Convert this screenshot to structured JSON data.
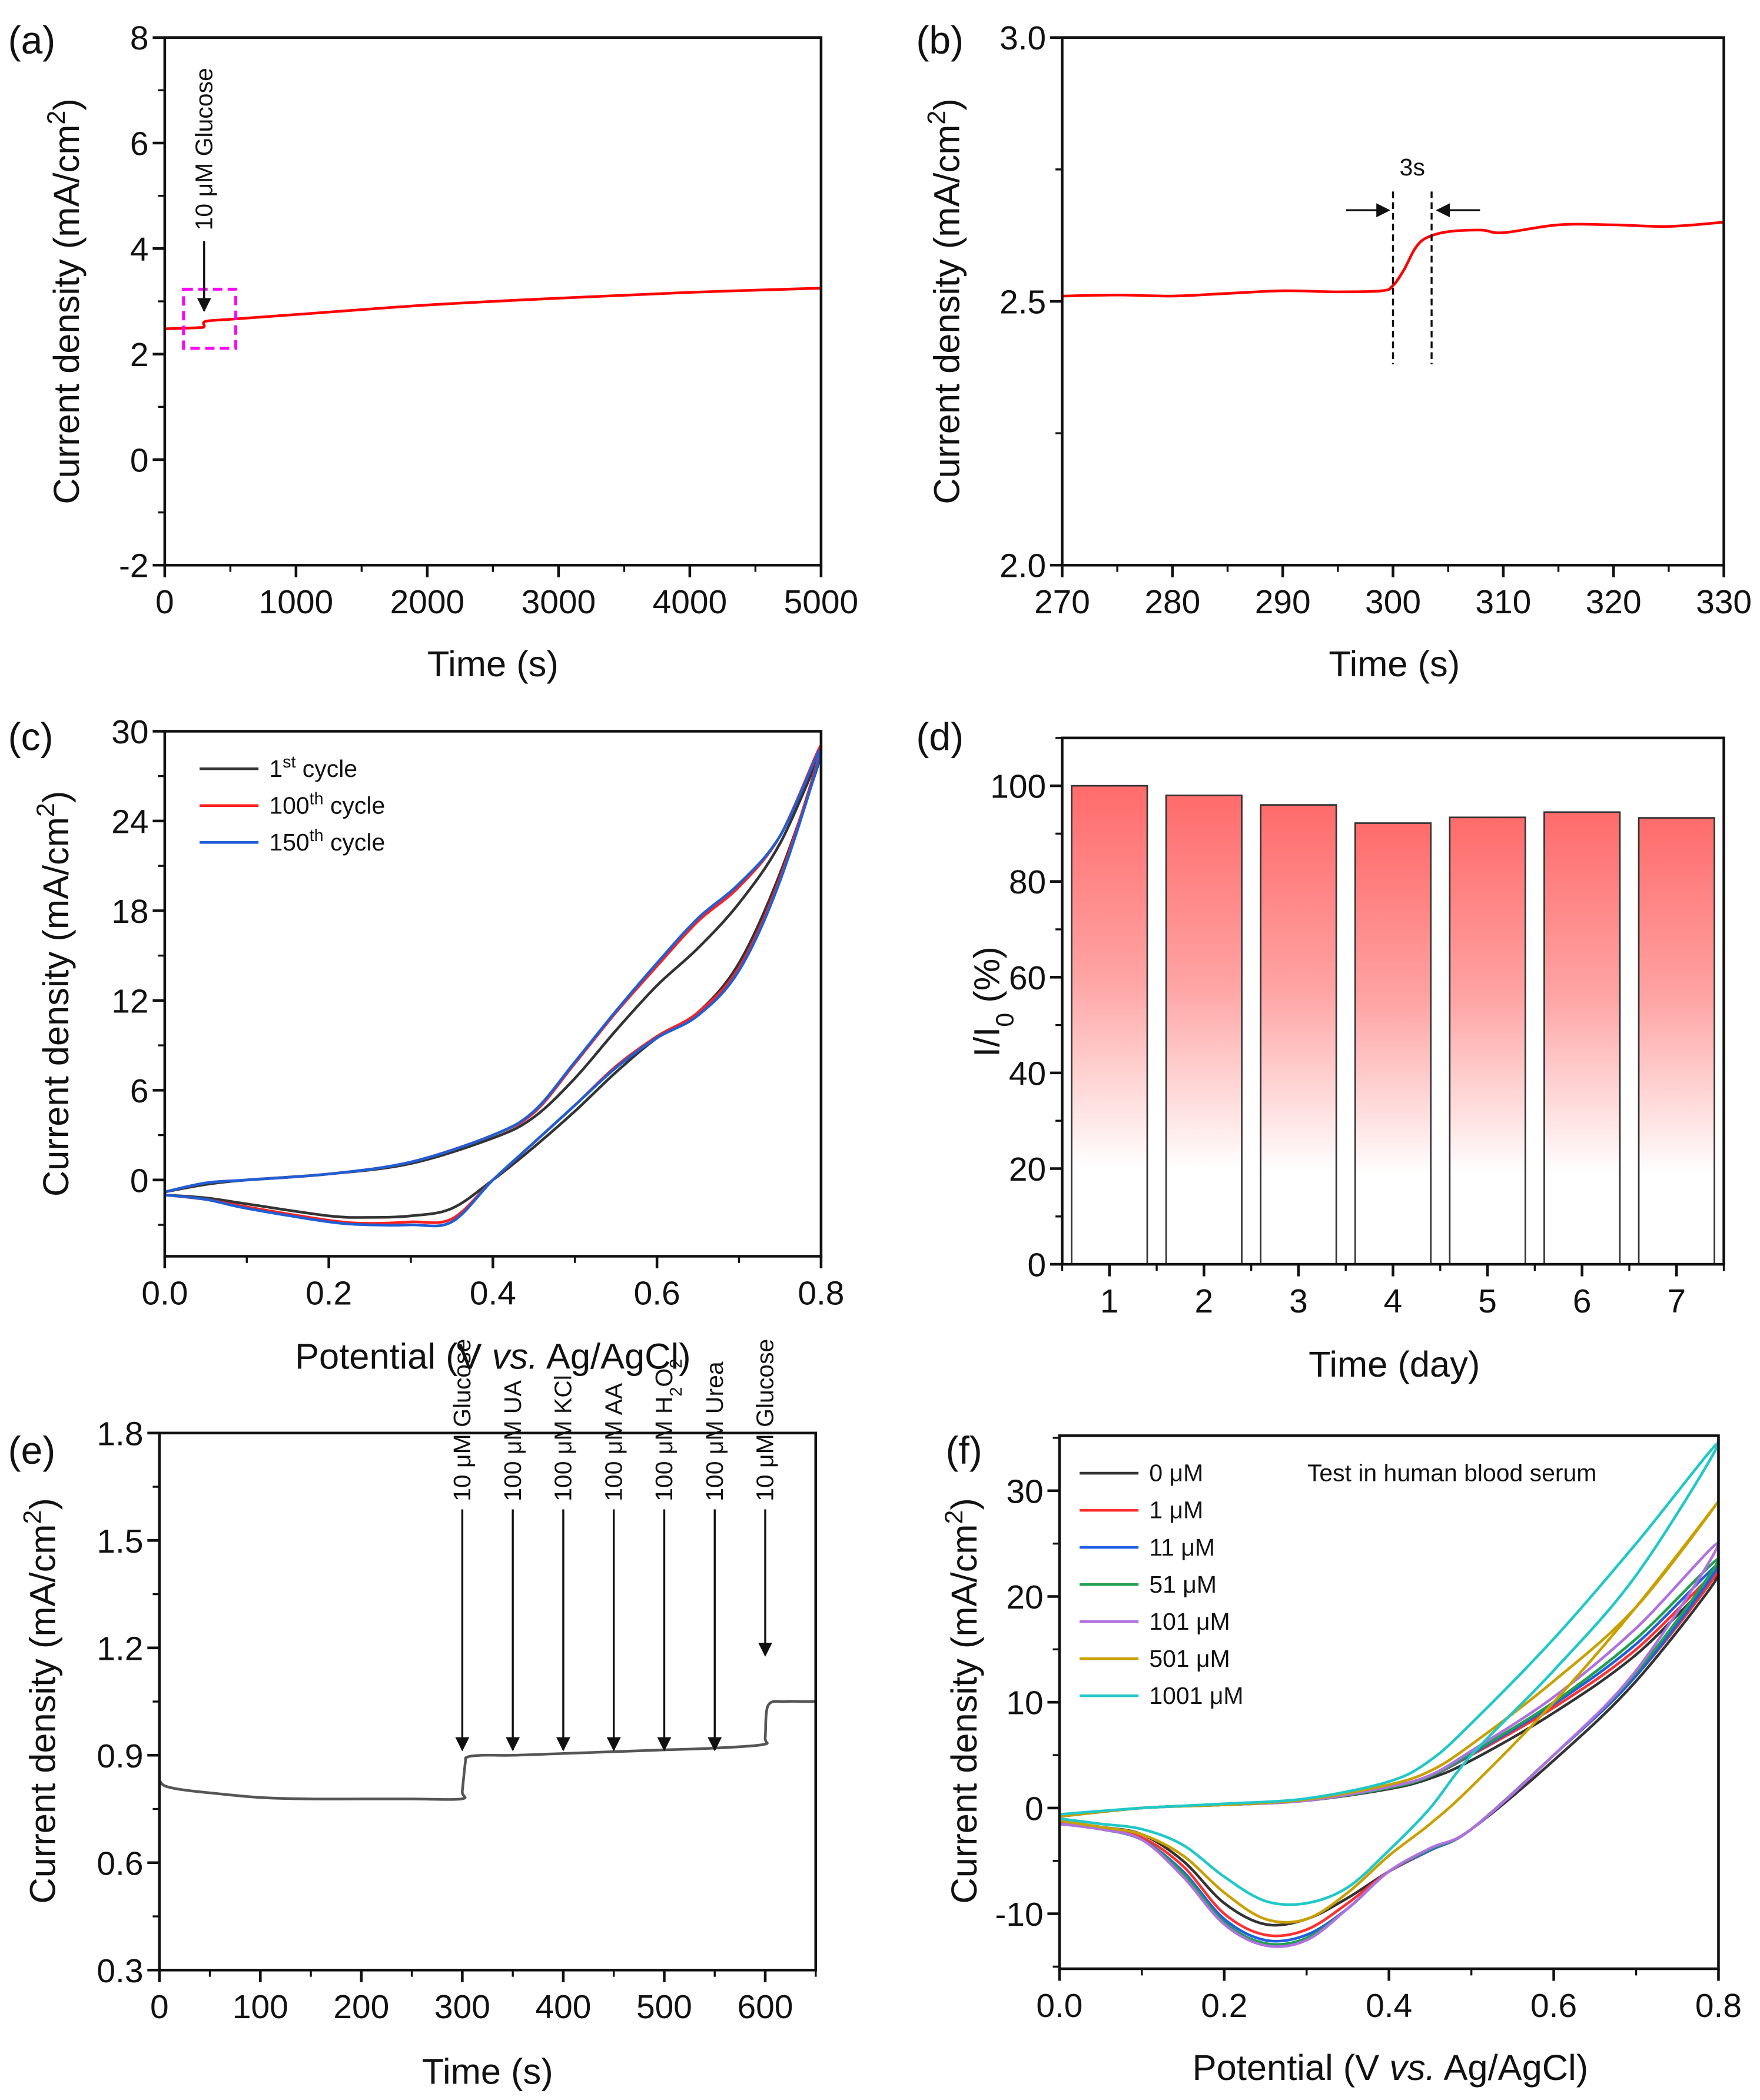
{
  "chart_data": [
    {
      "panel": "(a)",
      "type": "line",
      "xlabel": [
        {
          "t": "Time (s)"
        }
      ],
      "ylabel": [
        {
          "t": "Current density (mA/cm"
        },
        {
          "t": "2",
          "sup": true
        },
        {
          "t": ")"
        }
      ],
      "xlim": [
        0,
        5000
      ],
      "ylim": [
        -2,
        8
      ],
      "xticks": [
        0,
        1000,
        2000,
        3000,
        4000,
        5000
      ],
      "xtick_labels": [
        "0",
        "1000",
        "2000",
        "3000",
        "4000",
        "5000"
      ],
      "xminor": 500,
      "yticks": [
        -2,
        0,
        2,
        4,
        6,
        8
      ],
      "ytick_labels": [
        "-2",
        "0",
        "2",
        "4",
        "6",
        "8"
      ],
      "yminor": 1,
      "series": [
        {
          "color": "#ff0000",
          "x": [
            0,
            250,
            300,
            310,
            500,
            1000,
            2000,
            3000,
            4000,
            5000
          ],
          "y": [
            2.48,
            2.5,
            2.52,
            2.62,
            2.66,
            2.75,
            2.93,
            3.06,
            3.17,
            3.25
          ]
        }
      ],
      "annotations": {
        "arrow_text": "10 μM Glucose",
        "arrow_x": 300,
        "highlight_box": {
          "x": [
            143,
            541
          ],
          "y": [
            2.11,
            3.23
          ],
          "color": "#ff00ff"
        }
      }
    },
    {
      "panel": "(b)",
      "type": "line",
      "xlabel": [
        {
          "t": "Time (s)"
        }
      ],
      "ylabel": [
        {
          "t": "Current density (mA/cm"
        },
        {
          "t": "2",
          "sup": true
        },
        {
          "t": ")"
        }
      ],
      "xlim": [
        270,
        330
      ],
      "ylim": [
        2.0,
        3.0
      ],
      "xticks": [
        270,
        280,
        290,
        300,
        310,
        320,
        330
      ],
      "xtick_labels": [
        "270",
        "280",
        "290",
        "300",
        "310",
        "320",
        "330"
      ],
      "xminor": 5,
      "yticks": [
        2.0,
        2.5,
        3.0
      ],
      "ytick_labels": [
        "2.0",
        "2.5",
        "3.0"
      ],
      "yminor": 0.25,
      "series": [
        {
          "color": "#ff0000",
          "x": [
            270,
            275,
            280,
            285,
            290,
            295,
            299,
            300,
            301,
            302,
            303,
            305,
            308,
            310,
            315,
            320,
            325,
            330
          ],
          "y": [
            2.51,
            2.512,
            2.51,
            2.515,
            2.52,
            2.518,
            2.52,
            2.53,
            2.56,
            2.6,
            2.62,
            2.632,
            2.635,
            2.63,
            2.645,
            2.645,
            2.642,
            2.65
          ]
        }
      ],
      "annotations": {
        "label": "3s",
        "dashed_x": [
          300,
          303.5
        ]
      }
    },
    {
      "panel": "(c)",
      "type": "line",
      "xlabel": [
        {
          "t": "Potential (V "
        },
        {
          "t": "vs.",
          "italic": true
        },
        {
          "t": " Ag/AgCl)"
        }
      ],
      "ylabel": [
        {
          "t": "Current density (mA/cm"
        },
        {
          "t": "2",
          "sup": true
        },
        {
          "t": ")"
        }
      ],
      "xlim": [
        0,
        0.8
      ],
      "ylim": [
        -5.1,
        30
      ],
      "xticks": [
        0,
        0.2,
        0.4,
        0.6,
        0.8
      ],
      "xtick_labels": [
        "0.0",
        "0.2",
        "0.4",
        "0.6",
        "0.8"
      ],
      "xminor": 0.1,
      "yticks": [
        0,
        6,
        12,
        18,
        24,
        30
      ],
      "ytick_labels": [
        "0",
        "6",
        "12",
        "18",
        "24",
        "30"
      ],
      "yminor": 3,
      "legend_placement": "top-left",
      "series": [
        {
          "name": [
            {
              "t": "1"
            },
            {
              "t": "st",
              "sup": true
            },
            {
              "t": " cycle"
            }
          ],
          "color": "#333333",
          "x": [
            0,
            0.05,
            0.1,
            0.2,
            0.3,
            0.4,
            0.45,
            0.5,
            0.55,
            0.6,
            0.65,
            0.7,
            0.75,
            0.8,
            0.75,
            0.7,
            0.65,
            0.6,
            0.55,
            0.5,
            0.45,
            0.4,
            0.35,
            0.3,
            0.25,
            0.2,
            0.1,
            0.05,
            0
          ],
          "y": [
            -0.8,
            -0.3,
            0,
            0.4,
            1.1,
            2.8,
            4.2,
            6.8,
            10,
            13,
            15.5,
            18.5,
            22.5,
            28.5,
            20.5,
            14.5,
            11.2,
            9.5,
            7.2,
            4.6,
            2.2,
            0,
            -1.9,
            -2.4,
            -2.5,
            -2.4,
            -1.6,
            -1.2,
            -1
          ]
        },
        {
          "name": [
            {
              "t": "100"
            },
            {
              "t": "th",
              "sup": true
            },
            {
              "t": " cycle"
            }
          ],
          "color": "#ff2020",
          "x": [
            0,
            0.05,
            0.1,
            0.2,
            0.3,
            0.4,
            0.45,
            0.5,
            0.55,
            0.6,
            0.65,
            0.7,
            0.75,
            0.8,
            0.75,
            0.7,
            0.65,
            0.6,
            0.55,
            0.5,
            0.45,
            0.4,
            0.35,
            0.3,
            0.25,
            0.2,
            0.1,
            0.05,
            0
          ],
          "y": [
            -0.8,
            -0.2,
            0,
            0.4,
            1.2,
            3,
            4.5,
            7.8,
            11.2,
            14.3,
            17.3,
            19.6,
            23,
            29,
            20.2,
            14.2,
            11.2,
            9.6,
            7.6,
            5,
            2.5,
            0,
            -2.6,
            -2.8,
            -2.9,
            -2.7,
            -1.8,
            -1.3,
            -1
          ]
        },
        {
          "name": [
            {
              "t": "150"
            },
            {
              "t": "th",
              "sup": true
            },
            {
              "t": " cycle"
            }
          ],
          "color": "#1f5fd6",
          "x": [
            0,
            0.05,
            0.1,
            0.2,
            0.3,
            0.4,
            0.45,
            0.5,
            0.55,
            0.6,
            0.65,
            0.7,
            0.75,
            0.8,
            0.75,
            0.7,
            0.65,
            0.6,
            0.55,
            0.5,
            0.45,
            0.4,
            0.35,
            0.3,
            0.25,
            0.2,
            0.1,
            0.05,
            0
          ],
          "y": [
            -0.8,
            -0.2,
            0,
            0.4,
            1.2,
            3,
            4.6,
            7.9,
            11.3,
            14.5,
            17.5,
            19.8,
            23,
            28.8,
            20,
            14,
            11,
            9.5,
            7.5,
            5,
            2.5,
            0,
            -2.8,
            -3,
            -3,
            -2.8,
            -1.9,
            -1.3,
            -1
          ]
        }
      ]
    },
    {
      "panel": "(d)",
      "type": "bar",
      "xlabel": [
        {
          "t": "Time (day)"
        }
      ],
      "ylabel": [
        {
          "t": "I/I"
        },
        {
          "t": "0",
          "sub": true
        },
        {
          "t": " (%)"
        }
      ],
      "categories": [
        "1",
        "2",
        "3",
        "4",
        "5",
        "6",
        "7"
      ],
      "values": [
        100,
        98,
        96,
        92.2,
        93.4,
        94.5,
        93.3
      ],
      "xlim": [
        0.5,
        7.5
      ],
      "ylim": [
        0,
        110
      ],
      "xticks": [
        1,
        2,
        3,
        4,
        5,
        6,
        7
      ],
      "xtick_labels": [
        "1",
        "2",
        "3",
        "4",
        "5",
        "6",
        "7"
      ],
      "xminor": 0.5,
      "yticks": [
        0,
        20,
        40,
        60,
        80,
        100
      ],
      "ytick_labels": [
        "0",
        "20",
        "40",
        "60",
        "80",
        "100"
      ],
      "yminor": 10,
      "bar_color": "#ff6b6b"
    },
    {
      "panel": "(e)",
      "type": "line",
      "xlabel": [
        {
          "t": "Time (s)"
        }
      ],
      "ylabel": [
        {
          "t": "Current density (mA/cm"
        },
        {
          "t": "2",
          "sup": true
        },
        {
          "t": ")"
        }
      ],
      "xlim": [
        0,
        650
      ],
      "ylim": [
        0.3,
        1.8
      ],
      "xticks": [
        0,
        100,
        200,
        300,
        400,
        500,
        600
      ],
      "xtick_labels": [
        "0",
        "100",
        "200",
        "300",
        "400",
        "500",
        "600"
      ],
      "xminor": 50,
      "yticks": [
        0.3,
        0.6,
        0.9,
        1.2,
        1.5,
        1.8
      ],
      "ytick_labels": [
        "0.3",
        "0.6",
        "0.9",
        "1.2",
        "1.5",
        "1.8"
      ],
      "yminor": 0.15,
      "series": [
        {
          "color": "#555555",
          "x": [
            0,
            5,
            20,
            50,
            100,
            150,
            200,
            250,
            299,
            300,
            303,
            305,
            320,
            350,
            400,
            450,
            500,
            550,
            598,
            600,
            603,
            620,
            640,
            650
          ],
          "y": [
            0.83,
            0.815,
            0.805,
            0.795,
            0.782,
            0.778,
            0.778,
            0.778,
            0.778,
            0.8,
            0.88,
            0.895,
            0.9,
            0.9,
            0.905,
            0.91,
            0.915,
            0.92,
            0.93,
            0.95,
            1.04,
            1.05,
            1.05,
            1.05
          ]
        }
      ],
      "annotations": [
        {
          "x": 300,
          "label": [
            {
              "t": "10 μM Glucose"
            }
          ]
        },
        {
          "x": 350,
          "label": [
            {
              "t": "100 μM UA"
            }
          ]
        },
        {
          "x": 400,
          "label": [
            {
              "t": "100 μM KCl"
            }
          ]
        },
        {
          "x": 450,
          "label": [
            {
              "t": "100 μM AA"
            }
          ]
        },
        {
          "x": 500,
          "label": [
            {
              "t": "100 μM H"
            },
            {
              "t": "2",
              "sub": true
            },
            {
              "t": "O"
            },
            {
              "t": "2",
              "sub": true
            }
          ]
        },
        {
          "x": 550,
          "label": [
            {
              "t": "100 μM Urea"
            }
          ]
        },
        {
          "x": 600,
          "label": [
            {
              "t": "10 μM Glucose"
            }
          ]
        }
      ]
    },
    {
      "panel": "(f)",
      "type": "line",
      "xlabel": [
        {
          "t": "Potential (V "
        },
        {
          "t": "vs.",
          "italic": true
        },
        {
          "t": " Ag/AgCl)"
        }
      ],
      "ylabel": [
        {
          "t": "Current density (mA/cm"
        },
        {
          "t": "2",
          "sup": true
        },
        {
          "t": ")"
        }
      ],
      "xlim": [
        0,
        0.8
      ],
      "ylim": [
        -15.2,
        35.2
      ],
      "xticks": [
        0,
        0.2,
        0.4,
        0.6,
        0.8
      ],
      "xtick_labels": [
        "0.0",
        "0.2",
        "0.4",
        "0.6",
        "0.8"
      ],
      "xminor": 0.1,
      "yticks": [
        -10,
        0,
        10,
        20,
        30
      ],
      "ytick_labels": [
        "-10",
        "0",
        "10",
        "20",
        "30"
      ],
      "yminor": 5,
      "annotation": "Test in human blood serum",
      "legend_placement": "top-left",
      "forward_x": [
        0,
        0.1,
        0.2,
        0.3,
        0.4,
        0.45,
        0.5,
        0.6,
        0.7,
        0.8
      ],
      "reverse_x": [
        0.8,
        0.7,
        0.6,
        0.5,
        0.45,
        0.4,
        0.35,
        0.3,
        0.25,
        0.2,
        0.15,
        0.1,
        0.05,
        0
      ],
      "series": [
        {
          "name": [
            {
              "t": "0 μM"
            }
          ],
          "color": "#333333",
          "forward_y": [
            -0.8,
            0,
            0.3,
            0.7,
            1.8,
            2.8,
            4.5,
            9,
            14.5,
            22
          ],
          "reverse_y": [
            21.5,
            12,
            4.5,
            -2,
            -4,
            -6,
            -8.5,
            -10.5,
            -11,
            -9,
            -5,
            -2.5,
            -1.8,
            -1.3
          ]
        },
        {
          "name": [
            {
              "t": "1 μM"
            }
          ],
          "color": "#ff3030",
          "forward_y": [
            -0.8,
            0,
            0.3,
            0.7,
            1.9,
            3,
            5,
            9.5,
            15,
            22.5
          ],
          "reverse_y": [
            22,
            12.5,
            5,
            -2,
            -4,
            -6,
            -9,
            -11.5,
            -12,
            -10,
            -5.5,
            -2.8,
            -2,
            -1.4
          ]
        },
        {
          "name": [
            {
              "t": "11 μM"
            }
          ],
          "color": "#2060e0",
          "forward_y": [
            -0.8,
            0,
            0.3,
            0.7,
            1.9,
            3,
            5.1,
            9.8,
            15.5,
            23
          ],
          "reverse_y": [
            22.5,
            12.5,
            5,
            -2,
            -4,
            -6,
            -9.5,
            -12,
            -12.5,
            -10.5,
            -6,
            -3,
            -2,
            -1.5
          ]
        },
        {
          "name": [
            {
              "t": "51 μM"
            }
          ],
          "color": "#20a050",
          "forward_y": [
            -0.8,
            0,
            0.3,
            0.7,
            1.9,
            3,
            5.2,
            10,
            16,
            23.5
          ],
          "reverse_y": [
            23,
            12.8,
            5,
            -2,
            -3.9,
            -6,
            -9.5,
            -12.3,
            -12.8,
            -10.8,
            -6.2,
            -3,
            -2,
            -1.5
          ]
        },
        {
          "name": [
            {
              "t": "101 μM"
            }
          ],
          "color": "#b070e0",
          "forward_y": [
            -0.8,
            0,
            0.3,
            0.7,
            2,
            3.1,
            5.4,
            10.5,
            17,
            25
          ],
          "reverse_y": [
            24,
            13,
            5,
            -2,
            -3.8,
            -6,
            -9.5,
            -12.5,
            -13,
            -11,
            -6.5,
            -3,
            -2,
            -1.5
          ]
        },
        {
          "name": [
            {
              "t": "501 μM"
            }
          ],
          "color": "#c8a000",
          "forward_y": [
            -0.8,
            0,
            0.3,
            0.8,
            2.2,
            3.5,
            6,
            12,
            19,
            29
          ],
          "reverse_y": [
            28.5,
            19,
            10,
            2,
            -1.5,
            -4.5,
            -8,
            -10.5,
            -10.5,
            -8,
            -4.5,
            -2.5,
            -1.8,
            -1.2
          ]
        },
        {
          "name": [
            {
              "t": "1001 μM"
            }
          ],
          "color": "#20c8c8",
          "forward_y": [
            -0.6,
            0,
            0.4,
            0.9,
            2.5,
            4.5,
            8,
            16,
            25,
            34.5
          ],
          "reverse_y": [
            34,
            22,
            13,
            5,
            0,
            -4,
            -7.5,
            -9,
            -8.8,
            -6.5,
            -3.5,
            -2,
            -1.5,
            -1
          ]
        }
      ]
    }
  ]
}
